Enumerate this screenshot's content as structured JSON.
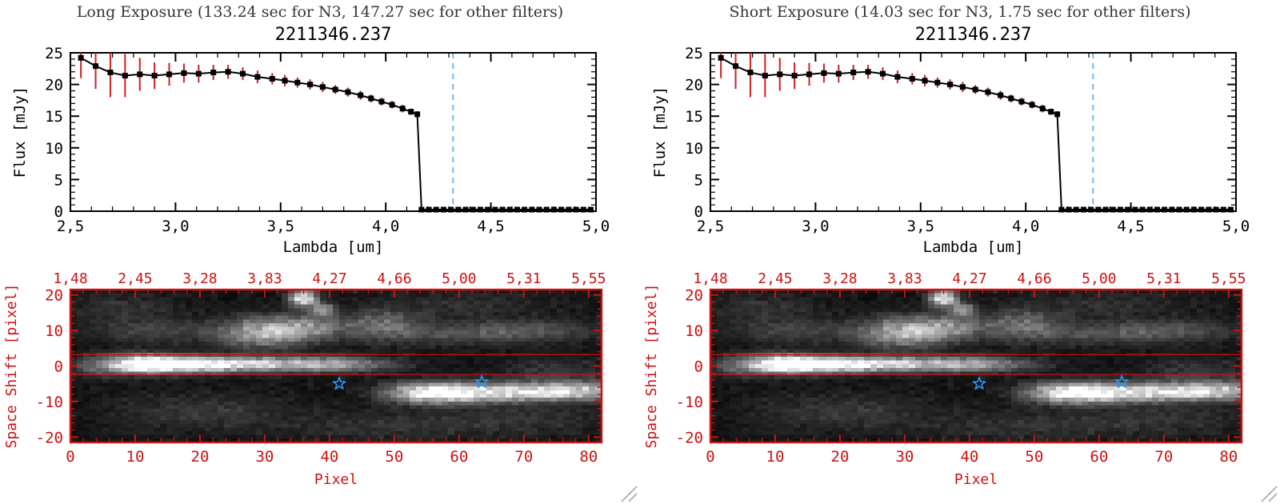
{
  "panels": [
    {
      "header": "Long Exposure (133.24 sec for N3, 147.27 sec for other filters)",
      "title": "2211346.237"
    },
    {
      "header": "Short Exposure (14.03 sec for N3, 1.75 sec for other filters)",
      "title": "2211346.237"
    }
  ],
  "colors": {
    "axis_red": "#cc1111",
    "error_red": "#cc2020",
    "vline_blue": "#6fb7e8",
    "star_blue": "#2f8fe8",
    "text": "#000000",
    "header_text": "#33333b"
  },
  "chart_data": [
    {
      "type": "line",
      "panel": "Long Exposure (133.24 sec for N3, 147.27 sec for other filters)",
      "title": "2211346.237",
      "xlabel": "Lambda [um]",
      "ylabel": "Flux [mJy]",
      "xlim": [
        2.5,
        5.0
      ],
      "ylim": [
        0,
        25
      ],
      "x_minor_step": 0.1,
      "y_minor_step": 1,
      "xticks": [
        {
          "v": 2.5,
          "label": "2,5"
        },
        {
          "v": 3.0,
          "label": "3,0"
        },
        {
          "v": 3.5,
          "label": "3,5"
        },
        {
          "v": 4.0,
          "label": "4,0"
        },
        {
          "v": 4.5,
          "label": "4,5"
        },
        {
          "v": 5.0,
          "label": "5,0"
        }
      ],
      "yticks": [
        {
          "v": 0,
          "label": "0"
        },
        {
          "v": 5,
          "label": "5"
        },
        {
          "v": 10,
          "label": "10"
        },
        {
          "v": 15,
          "label": "15"
        },
        {
          "v": 20,
          "label": "20"
        },
        {
          "v": 25,
          "label": "25"
        }
      ],
      "x": [
        2.55,
        2.62,
        2.69,
        2.76,
        2.83,
        2.9,
        2.97,
        3.04,
        3.11,
        3.18,
        3.25,
        3.32,
        3.39,
        3.46,
        3.52,
        3.58,
        3.64,
        3.7,
        3.76,
        3.82,
        3.88,
        3.93,
        3.98,
        4.03,
        4.08,
        4.12,
        4.15,
        4.17,
        4.205,
        4.24,
        4.275,
        4.31,
        4.345,
        4.38,
        4.415,
        4.45,
        4.485,
        4.52,
        4.555,
        4.59,
        4.625,
        4.66,
        4.695,
        4.73,
        4.765,
        4.8,
        4.835,
        4.87,
        4.905,
        4.94,
        4.975
      ],
      "y": [
        24.2,
        22.9,
        21.9,
        21.4,
        21.6,
        21.4,
        21.6,
        21.8,
        21.7,
        21.9,
        22.0,
        21.7,
        21.2,
        20.9,
        20.6,
        20.3,
        20.0,
        19.6,
        19.2,
        18.8,
        18.3,
        17.8,
        17.3,
        16.8,
        16.2,
        15.7,
        15.3,
        0.25,
        0.25,
        0.25,
        0.25,
        0.25,
        0.25,
        0.25,
        0.25,
        0.25,
        0.25,
        0.25,
        0.25,
        0.25,
        0.25,
        0.25,
        0.25,
        0.25,
        0.25,
        0.25,
        0.25,
        0.25,
        0.25,
        0.25,
        0.25
      ],
      "yerr": [
        3.2,
        3.6,
        3.9,
        3.4,
        2.6,
        2.1,
        1.8,
        1.5,
        1.4,
        1.2,
        1.1,
        1.0,
        1.0,
        0.9,
        0.9,
        0.8,
        0.8,
        0.8,
        0.7,
        0.7,
        0.7,
        0.6,
        0.6,
        0.6,
        0.6,
        0.5,
        0.5,
        0.35,
        0.35,
        0.35,
        0.35,
        0.35,
        0.35,
        0.35,
        0.35,
        0.35,
        0.35,
        0.35,
        0.35,
        0.35,
        0.35,
        0.35,
        0.35,
        0.35,
        0.35,
        0.35,
        0.35,
        0.35,
        0.35,
        0.35,
        0.35
      ],
      "marker": "square",
      "line_color": "#000000",
      "error_color": "#cc2020",
      "vline": {
        "x": 4.32,
        "color": "#6fb7e8",
        "style": "dashed"
      }
    },
    {
      "type": "line",
      "panel": "Short Exposure (14.03 sec for N3, 1.75 sec for other filters)",
      "title": "2211346.237",
      "xlabel": "Lambda [um]",
      "ylabel": "Flux [mJy]",
      "xlim": [
        2.5,
        5.0
      ],
      "ylim": [
        0,
        25
      ],
      "x_minor_step": 0.1,
      "y_minor_step": 1,
      "xticks": [
        {
          "v": 2.5,
          "label": "2,5"
        },
        {
          "v": 3.0,
          "label": "3,0"
        },
        {
          "v": 3.5,
          "label": "3,5"
        },
        {
          "v": 4.0,
          "label": "4,0"
        },
        {
          "v": 4.5,
          "label": "4,5"
        },
        {
          "v": 5.0,
          "label": "5,0"
        }
      ],
      "yticks": [
        {
          "v": 0,
          "label": "0"
        },
        {
          "v": 5,
          "label": "5"
        },
        {
          "v": 10,
          "label": "10"
        },
        {
          "v": 15,
          "label": "15"
        },
        {
          "v": 20,
          "label": "20"
        },
        {
          "v": 25,
          "label": "25"
        }
      ],
      "x": [
        2.55,
        2.62,
        2.69,
        2.76,
        2.83,
        2.9,
        2.97,
        3.04,
        3.11,
        3.18,
        3.25,
        3.32,
        3.39,
        3.46,
        3.52,
        3.58,
        3.64,
        3.7,
        3.76,
        3.82,
        3.88,
        3.93,
        3.98,
        4.03,
        4.08,
        4.12,
        4.15,
        4.17,
        4.205,
        4.24,
        4.275,
        4.31,
        4.345,
        4.38,
        4.415,
        4.45,
        4.485,
        4.52,
        4.555,
        4.59,
        4.625,
        4.66,
        4.695,
        4.73,
        4.765,
        4.8,
        4.835,
        4.87,
        4.905,
        4.94,
        4.975
      ],
      "y": [
        24.2,
        22.9,
        21.9,
        21.4,
        21.6,
        21.4,
        21.6,
        21.8,
        21.7,
        21.9,
        22.0,
        21.7,
        21.2,
        20.9,
        20.6,
        20.3,
        20.0,
        19.6,
        19.2,
        18.8,
        18.3,
        17.8,
        17.3,
        16.8,
        16.2,
        15.7,
        15.3,
        0.25,
        0.25,
        0.25,
        0.25,
        0.25,
        0.25,
        0.25,
        0.25,
        0.25,
        0.25,
        0.25,
        0.25,
        0.25,
        0.25,
        0.25,
        0.25,
        0.25,
        0.25,
        0.25,
        0.25,
        0.25,
        0.25,
        0.25,
        0.25
      ],
      "yerr": [
        3.2,
        3.6,
        3.9,
        3.4,
        2.6,
        2.1,
        1.8,
        1.5,
        1.4,
        1.2,
        1.1,
        1.0,
        1.0,
        0.9,
        0.9,
        0.8,
        0.8,
        0.8,
        0.7,
        0.7,
        0.7,
        0.6,
        0.6,
        0.6,
        0.6,
        0.5,
        0.5,
        0.35,
        0.35,
        0.35,
        0.35,
        0.35,
        0.35,
        0.35,
        0.35,
        0.35,
        0.35,
        0.35,
        0.35,
        0.35,
        0.35,
        0.35,
        0.35,
        0.35,
        0.35,
        0.35,
        0.35,
        0.35,
        0.35,
        0.35,
        0.35
      ],
      "marker": "square",
      "line_color": "#000000",
      "error_color": "#cc2020",
      "vline": {
        "x": 4.32,
        "color": "#6fb7e8",
        "style": "dashed"
      }
    },
    {
      "type": "heatmap",
      "panel": "Long Exposure (133.24 sec for N3, 147.27 sec for other filters)",
      "xlabel": "Pixel",
      "ylabel": "Space Shift [pixel]",
      "xlim": [
        0,
        82
      ],
      "ylim": [
        -21.5,
        21.5
      ],
      "xticks": [
        {
          "v": 0,
          "label": "0"
        },
        {
          "v": 10,
          "label": "10"
        },
        {
          "v": 20,
          "label": "20"
        },
        {
          "v": 30,
          "label": "30"
        },
        {
          "v": 40,
          "label": "40"
        },
        {
          "v": 50,
          "label": "50"
        },
        {
          "v": 60,
          "label": "60"
        },
        {
          "v": 70,
          "label": "70"
        },
        {
          "v": 80,
          "label": "80"
        }
      ],
      "yticks": [
        {
          "v": 20,
          "label": "20"
        },
        {
          "v": 10,
          "label": "10"
        },
        {
          "v": 0,
          "label": "0"
        },
        {
          "v": -10,
          "label": "-10"
        },
        {
          "v": -20,
          "label": "-20"
        }
      ],
      "top_axis": {
        "labels": [
          {
            "v": 0,
            "label": "1,48"
          },
          {
            "v": 10,
            "label": "2,45"
          },
          {
            "v": 20,
            "label": "3,28"
          },
          {
            "v": 30,
            "label": "3,83"
          },
          {
            "v": 40,
            "label": "4,27"
          },
          {
            "v": 50,
            "label": "4,66"
          },
          {
            "v": 60,
            "label": "5,00"
          },
          {
            "v": 70,
            "label": "5,31"
          },
          {
            "v": 80,
            "label": "5,55"
          }
        ]
      },
      "aperture_lines_y": [
        3.2,
        -2.4
      ],
      "stars": [
        {
          "x": 41.5,
          "y": -5.0
        },
        {
          "x": 63.5,
          "y": -4.5
        }
      ],
      "grid_size": {
        "nx": 83,
        "ny": 41
      },
      "noise": {
        "seed": 42,
        "base": 0.02,
        "amp": 0.06
      },
      "blobs": [
        {
          "x": 11,
          "y": 0.5,
          "sx": 3.5,
          "sy": 1.7,
          "a": 1.05
        },
        {
          "x": 19,
          "y": 0.5,
          "sx": 5,
          "sy": 1.5,
          "a": 0.8
        },
        {
          "x": 29,
          "y": 0.5,
          "sx": 7,
          "sy": 1.4,
          "a": 0.6
        },
        {
          "x": 41,
          "y": 0.5,
          "sx": 6,
          "sy": 1.4,
          "a": 0.45
        },
        {
          "x": 4,
          "y": 0,
          "sx": 3,
          "sy": 2,
          "a": 0.22
        },
        {
          "x": 56,
          "y": -7.5,
          "sx": 4.5,
          "sy": 1.9,
          "a": 0.95
        },
        {
          "x": 66,
          "y": -7.5,
          "sx": 6,
          "sy": 1.7,
          "a": 0.7
        },
        {
          "x": 78,
          "y": -7,
          "sx": 6,
          "sy": 1.7,
          "a": 0.7
        },
        {
          "x": 30,
          "y": 9.5,
          "sx": 4.5,
          "sy": 2.8,
          "a": 0.6
        },
        {
          "x": 37,
          "y": 11,
          "sx": 3.5,
          "sy": 2.2,
          "a": 0.35
        },
        {
          "x": 36,
          "y": 19,
          "sx": 1.4,
          "sy": 1.6,
          "a": 0.9
        },
        {
          "x": 39,
          "y": 16,
          "sx": 1.2,
          "sy": 1.2,
          "a": 0.45
        },
        {
          "x": 48,
          "y": 12,
          "sx": 4,
          "sy": 2.5,
          "a": 0.28
        },
        {
          "x": 55,
          "y": 9,
          "sx": 10,
          "sy": 2.2,
          "a": 0.16
        },
        {
          "x": 70,
          "y": 10,
          "sx": 7,
          "sy": 2,
          "a": 0.22
        },
        {
          "x": 14,
          "y": 9.5,
          "sx": 7,
          "sy": 2.3,
          "a": 0.16
        },
        {
          "x": 20,
          "y": -13,
          "sx": 9,
          "sy": 3.5,
          "a": 0.12
        },
        {
          "x": 48,
          "y": -17,
          "sx": 10,
          "sy": 3,
          "a": 0.1
        },
        {
          "x": 70,
          "y": -15,
          "sx": 9,
          "sy": 3,
          "a": 0.1
        },
        {
          "x": 8,
          "y": 16,
          "sx": 6,
          "sy": 3,
          "a": 0.1
        },
        {
          "x": 60,
          "y": 17,
          "sx": 10,
          "sy": 3,
          "a": 0.08
        },
        {
          "x": 75,
          "y": -2,
          "sx": 6,
          "sy": 3,
          "a": 0.12
        }
      ],
      "colors": {
        "axis": "#cc1111",
        "star": "#2f8fe8"
      }
    },
    {
      "type": "heatmap",
      "panel": "Short Exposure (14.03 sec for N3, 1.75 sec for other filters)",
      "xlabel": "Pixel",
      "ylabel": "Space Shift [pixel]",
      "xlim": [
        0,
        82
      ],
      "ylim": [
        -21.5,
        21.5
      ],
      "xticks": [
        {
          "v": 0,
          "label": "0"
        },
        {
          "v": 10,
          "label": "10"
        },
        {
          "v": 20,
          "label": "20"
        },
        {
          "v": 30,
          "label": "30"
        },
        {
          "v": 40,
          "label": "40"
        },
        {
          "v": 50,
          "label": "50"
        },
        {
          "v": 60,
          "label": "60"
        },
        {
          "v": 70,
          "label": "70"
        },
        {
          "v": 80,
          "label": "80"
        }
      ],
      "yticks": [
        {
          "v": 20,
          "label": "20"
        },
        {
          "v": 10,
          "label": "10"
        },
        {
          "v": 0,
          "label": "0"
        },
        {
          "v": -10,
          "label": "-10"
        },
        {
          "v": -20,
          "label": "-20"
        }
      ],
      "top_axis": {
        "labels": [
          {
            "v": 0,
            "label": "1,48"
          },
          {
            "v": 10,
            "label": "2,45"
          },
          {
            "v": 20,
            "label": "3,28"
          },
          {
            "v": 30,
            "label": "3,83"
          },
          {
            "v": 40,
            "label": "4,27"
          },
          {
            "v": 50,
            "label": "4,66"
          },
          {
            "v": 60,
            "label": "5,00"
          },
          {
            "v": 70,
            "label": "5,31"
          },
          {
            "v": 80,
            "label": "5,55"
          }
        ]
      },
      "aperture_lines_y": [
        3.2,
        -2.4
      ],
      "stars": [
        {
          "x": 41.5,
          "y": -5.0
        },
        {
          "x": 63.5,
          "y": -4.5
        }
      ],
      "grid_size": {
        "nx": 83,
        "ny": 41
      },
      "noise": {
        "seed": 42,
        "base": 0.02,
        "amp": 0.06
      },
      "blobs": [
        {
          "x": 11,
          "y": 0.5,
          "sx": 3.5,
          "sy": 1.7,
          "a": 1.05
        },
        {
          "x": 19,
          "y": 0.5,
          "sx": 5,
          "sy": 1.5,
          "a": 0.8
        },
        {
          "x": 29,
          "y": 0.5,
          "sx": 7,
          "sy": 1.4,
          "a": 0.6
        },
        {
          "x": 41,
          "y": 0.5,
          "sx": 6,
          "sy": 1.4,
          "a": 0.45
        },
        {
          "x": 4,
          "y": 0,
          "sx": 3,
          "sy": 2,
          "a": 0.22
        },
        {
          "x": 56,
          "y": -7.5,
          "sx": 4.5,
          "sy": 1.9,
          "a": 0.95
        },
        {
          "x": 66,
          "y": -7.5,
          "sx": 6,
          "sy": 1.7,
          "a": 0.7
        },
        {
          "x": 78,
          "y": -7,
          "sx": 6,
          "sy": 1.7,
          "a": 0.7
        },
        {
          "x": 30,
          "y": 9.5,
          "sx": 4.5,
          "sy": 2.8,
          "a": 0.6
        },
        {
          "x": 37,
          "y": 11,
          "sx": 3.5,
          "sy": 2.2,
          "a": 0.35
        },
        {
          "x": 36,
          "y": 19,
          "sx": 1.4,
          "sy": 1.6,
          "a": 0.9
        },
        {
          "x": 39,
          "y": 16,
          "sx": 1.2,
          "sy": 1.2,
          "a": 0.45
        },
        {
          "x": 48,
          "y": 12,
          "sx": 4,
          "sy": 2.5,
          "a": 0.28
        },
        {
          "x": 55,
          "y": 9,
          "sx": 10,
          "sy": 2.2,
          "a": 0.16
        },
        {
          "x": 70,
          "y": 10,
          "sx": 7,
          "sy": 2,
          "a": 0.22
        },
        {
          "x": 14,
          "y": 9.5,
          "sx": 7,
          "sy": 2.3,
          "a": 0.16
        },
        {
          "x": 20,
          "y": -13,
          "sx": 9,
          "sy": 3.5,
          "a": 0.12
        },
        {
          "x": 48,
          "y": -17,
          "sx": 10,
          "sy": 3,
          "a": 0.1
        },
        {
          "x": 70,
          "y": -15,
          "sx": 9,
          "sy": 3,
          "a": 0.1
        },
        {
          "x": 8,
          "y": 16,
          "sx": 6,
          "sy": 3,
          "a": 0.1
        },
        {
          "x": 60,
          "y": 17,
          "sx": 10,
          "sy": 3,
          "a": 0.08
        },
        {
          "x": 75,
          "y": -2,
          "sx": 6,
          "sy": 3,
          "a": 0.12
        }
      ],
      "colors": {
        "axis": "#cc1111",
        "star": "#2f8fe8"
      }
    }
  ]
}
